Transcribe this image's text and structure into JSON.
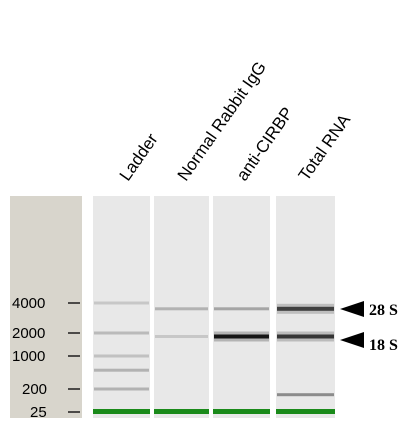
{
  "lanes": [
    {
      "name": "Ladder",
      "bands": [
        {
          "size": 4000,
          "intensity": 0.12
        },
        {
          "size": 2000,
          "intensity": 0.18
        },
        {
          "size": 1000,
          "intensity": 0.15
        },
        {
          "size": 500,
          "intensity": 0.22
        },
        {
          "size": 200,
          "intensity": 0.22
        }
      ]
    },
    {
      "name": "Normal Rabbit IgG",
      "bands": [
        {
          "size": 3500,
          "intensity": 0.22
        },
        {
          "size": 1800,
          "intensity": 0.12
        }
      ]
    },
    {
      "name": "anti-CIRBP",
      "bands": [
        {
          "size": 3500,
          "intensity": 0.28
        },
        {
          "size": 1800,
          "intensity": 0.95
        }
      ]
    },
    {
      "name": "Total RNA",
      "bands": [
        {
          "size": 3500,
          "intensity": 0.75
        },
        {
          "size": 1800,
          "intensity": 0.8
        },
        {
          "size": 120,
          "intensity": 0.4
        }
      ]
    }
  ],
  "size_markers": [
    "4000",
    "2000",
    "1000",
    "200",
    "25"
  ],
  "annotations": [
    {
      "label": "28 S",
      "size": 3500
    },
    {
      "label": "18 S",
      "size": 1800
    }
  ],
  "colors": {
    "marker_band": "#1a8a1a",
    "lane_bg": "#e8e8e8",
    "ruler_bg": "#d8d5cc"
  }
}
